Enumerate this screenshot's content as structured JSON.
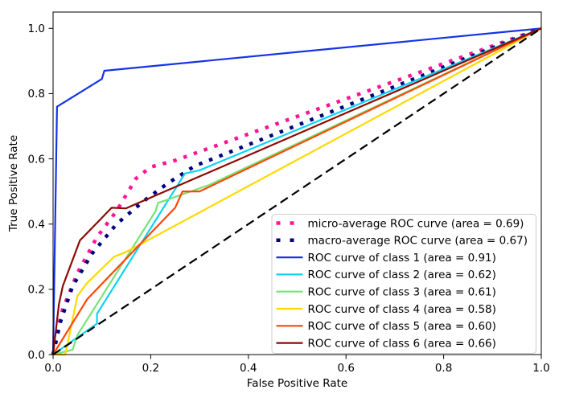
{
  "figure": {
    "background": "#ffffff",
    "frame_color": "#000000",
    "legend_border_color": "#cccccc",
    "legend_background": "#ffffff"
  },
  "chart_data": {
    "type": "line",
    "title": "",
    "xlabel": "False Positive Rate",
    "ylabel": "True Positive Rate",
    "xlim": [
      0.0,
      1.0
    ],
    "ylim": [
      0.0,
      1.05
    ],
    "xticks": [
      "0.0",
      "0.2",
      "0.4",
      "0.6",
      "0.8",
      "1.0"
    ],
    "yticks": [
      "0.0",
      "0.2",
      "0.4",
      "0.6",
      "0.8",
      "1.0"
    ],
    "grid": false,
    "legend_position": "lower right",
    "series": [
      {
        "id": "micro-average",
        "label": "micro-average ROC curve (area = 0.69)",
        "area": 0.69,
        "color": "#FF1493",
        "linestyle": "dotted",
        "linewidth": 4.5,
        "legend": true,
        "points": [
          [
            0,
            0
          ],
          [
            0.01,
            0.08
          ],
          [
            0.02,
            0.14
          ],
          [
            0.05,
            0.25
          ],
          [
            0.09,
            0.36
          ],
          [
            0.13,
            0.44
          ],
          [
            0.17,
            0.54
          ],
          [
            0.2,
            0.575
          ],
          [
            0.25,
            0.595
          ],
          [
            1,
            1
          ]
        ]
      },
      {
        "id": "macro-average",
        "label": "macro-average ROC curve (area = 0.67)",
        "area": 0.67,
        "color": "#000080",
        "linestyle": "dotted",
        "linewidth": 4.5,
        "legend": true,
        "points": [
          [
            0,
            0
          ],
          [
            0.015,
            0.1
          ],
          [
            0.04,
            0.21
          ],
          [
            0.08,
            0.31
          ],
          [
            0.13,
            0.4
          ],
          [
            0.185,
            0.47
          ],
          [
            0.235,
            0.525
          ],
          [
            0.29,
            0.578
          ],
          [
            1,
            1
          ]
        ]
      },
      {
        "id": "class-1",
        "label": "ROC curve of class 1 (area = 0.91)",
        "area": 0.91,
        "color": "#1633E4",
        "linestyle": "solid",
        "linewidth": 2.2,
        "legend": true,
        "points": [
          [
            0,
            0
          ],
          [
            0.008,
            0.76
          ],
          [
            0.1,
            0.845
          ],
          [
            0.105,
            0.87
          ],
          [
            1,
            1
          ]
        ]
      },
      {
        "id": "class-2",
        "label": "ROC curve of class 2 (area = 0.62)",
        "area": 0.62,
        "color": "#0ED2F4",
        "linestyle": "solid",
        "linewidth": 2.2,
        "legend": true,
        "points": [
          [
            0,
            0
          ],
          [
            0.09,
            0.095
          ],
          [
            0.09,
            0.125
          ],
          [
            0.27,
            0.555
          ],
          [
            0.3,
            0.565
          ],
          [
            1,
            1
          ]
        ]
      },
      {
        "id": "class-3",
        "label": "ROC curve of class 3 (area = 0.61)",
        "area": 0.61,
        "color": "#77E377",
        "linestyle": "solid",
        "linewidth": 2.2,
        "legend": true,
        "points": [
          [
            0,
            0
          ],
          [
            0.04,
            0.015
          ],
          [
            0.05,
            0.06
          ],
          [
            0.21,
            0.44
          ],
          [
            0.215,
            0.465
          ],
          [
            0.225,
            0.47
          ],
          [
            0.32,
            0.52
          ],
          [
            1,
            1
          ]
        ]
      },
      {
        "id": "class-4",
        "label": "ROC curve of class 4 (area = 0.58)",
        "area": 0.58,
        "color": "#FFD900",
        "linestyle": "solid",
        "linewidth": 2.2,
        "legend": true,
        "points": [
          [
            0,
            0
          ],
          [
            0.025,
            0
          ],
          [
            0.05,
            0.18
          ],
          [
            0.07,
            0.22
          ],
          [
            0.125,
            0.3
          ],
          [
            0.15,
            0.315
          ],
          [
            1,
            1
          ]
        ]
      },
      {
        "id": "class-5",
        "label": "ROC curve of class 5 (area = 0.60)",
        "area": 0.6,
        "color": "#FF4708",
        "linestyle": "solid",
        "linewidth": 2.2,
        "legend": true,
        "points": [
          [
            0,
            0
          ],
          [
            0.07,
            0.17
          ],
          [
            0.25,
            0.45
          ],
          [
            0.265,
            0.5
          ],
          [
            0.3,
            0.5
          ],
          [
            1,
            1
          ]
        ]
      },
      {
        "id": "class-6",
        "label": "ROC curve of class 6 (area = 0.66)",
        "area": 0.66,
        "color": "#8B0A04",
        "linestyle": "solid",
        "linewidth": 2.2,
        "legend": true,
        "points": [
          [
            0,
            0
          ],
          [
            0.012,
            0.155
          ],
          [
            0.02,
            0.21
          ],
          [
            0.055,
            0.35
          ],
          [
            0.12,
            0.45
          ],
          [
            0.149,
            0.448
          ],
          [
            1,
            1
          ]
        ]
      },
      {
        "id": "chance",
        "label": "",
        "area": null,
        "color": "#000000",
        "linestyle": "dashed",
        "linewidth": 2.2,
        "legend": false,
        "points": [
          [
            0,
            0
          ],
          [
            1,
            1
          ]
        ]
      }
    ]
  }
}
